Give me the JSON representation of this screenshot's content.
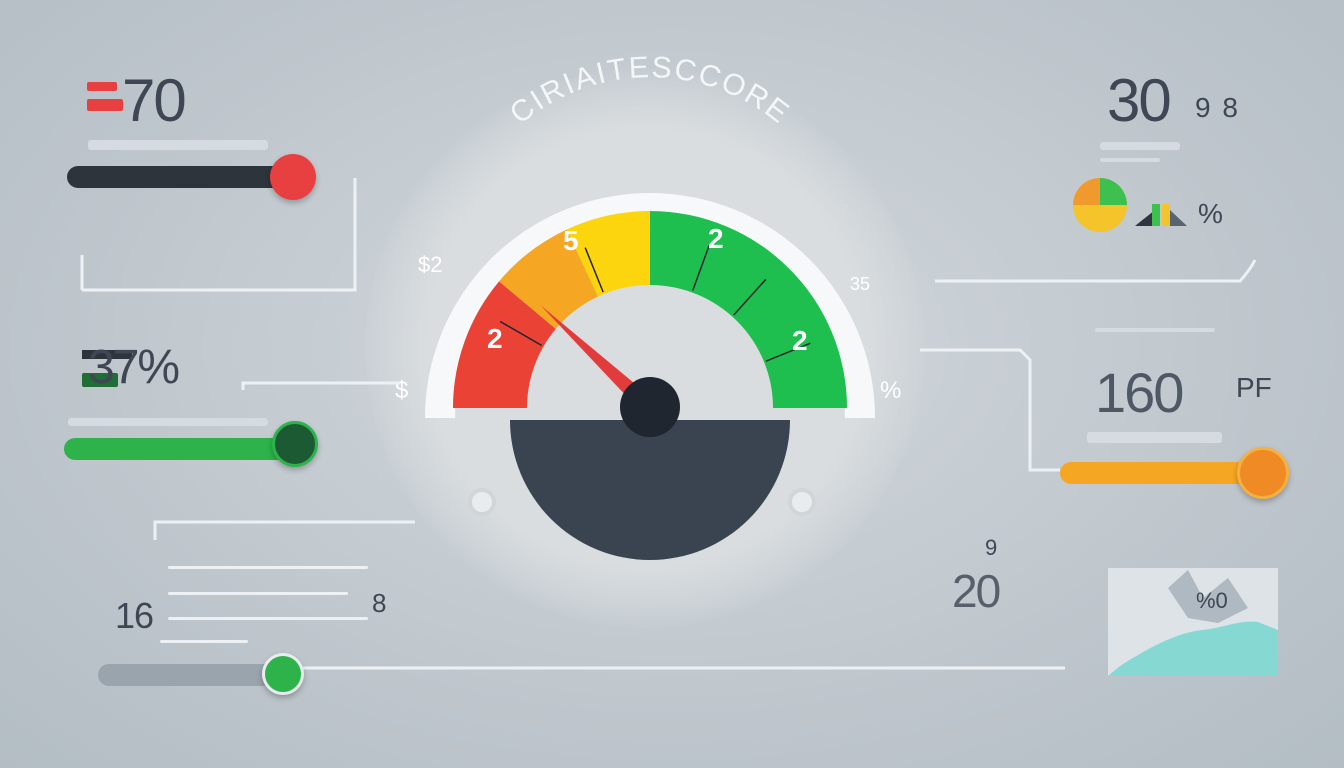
{
  "gauge": {
    "title": "CIRIAITESCCORE",
    "labels": {
      "red": "2",
      "orange": "5",
      "green_top": "2",
      "green_right": "2"
    },
    "side_left_top": "$2",
    "side_left_bottom": "$",
    "side_right_top": "35",
    "side_right_bottom": "%",
    "needle_position_percent": 24,
    "colors": {
      "red": "#ea4335",
      "orange": "#f5a623",
      "yellow": "#fdd50f",
      "green": "#1fbf4f",
      "dial": "#3a4350",
      "hub": "#1f2630"
    }
  },
  "left": {
    "metric1": {
      "value": "70",
      "slider_percent": 100,
      "color": "#e84040"
    },
    "metric2": {
      "value": "37%",
      "slider_percent": 100,
      "color": "#2db34a"
    },
    "metric3": {
      "value": "16",
      "aux": "8",
      "slider_percent": 18,
      "color": "#2db34a"
    }
  },
  "right": {
    "metric1": {
      "value": "30",
      "aux": "9 8",
      "percent_label": "%"
    },
    "metric2": {
      "value": "160",
      "unit": "PF",
      "slider_percent": 100,
      "color": "#f5a623"
    },
    "metric3": {
      "value": "20",
      "aux": "9",
      "chart_label": "%0"
    }
  }
}
